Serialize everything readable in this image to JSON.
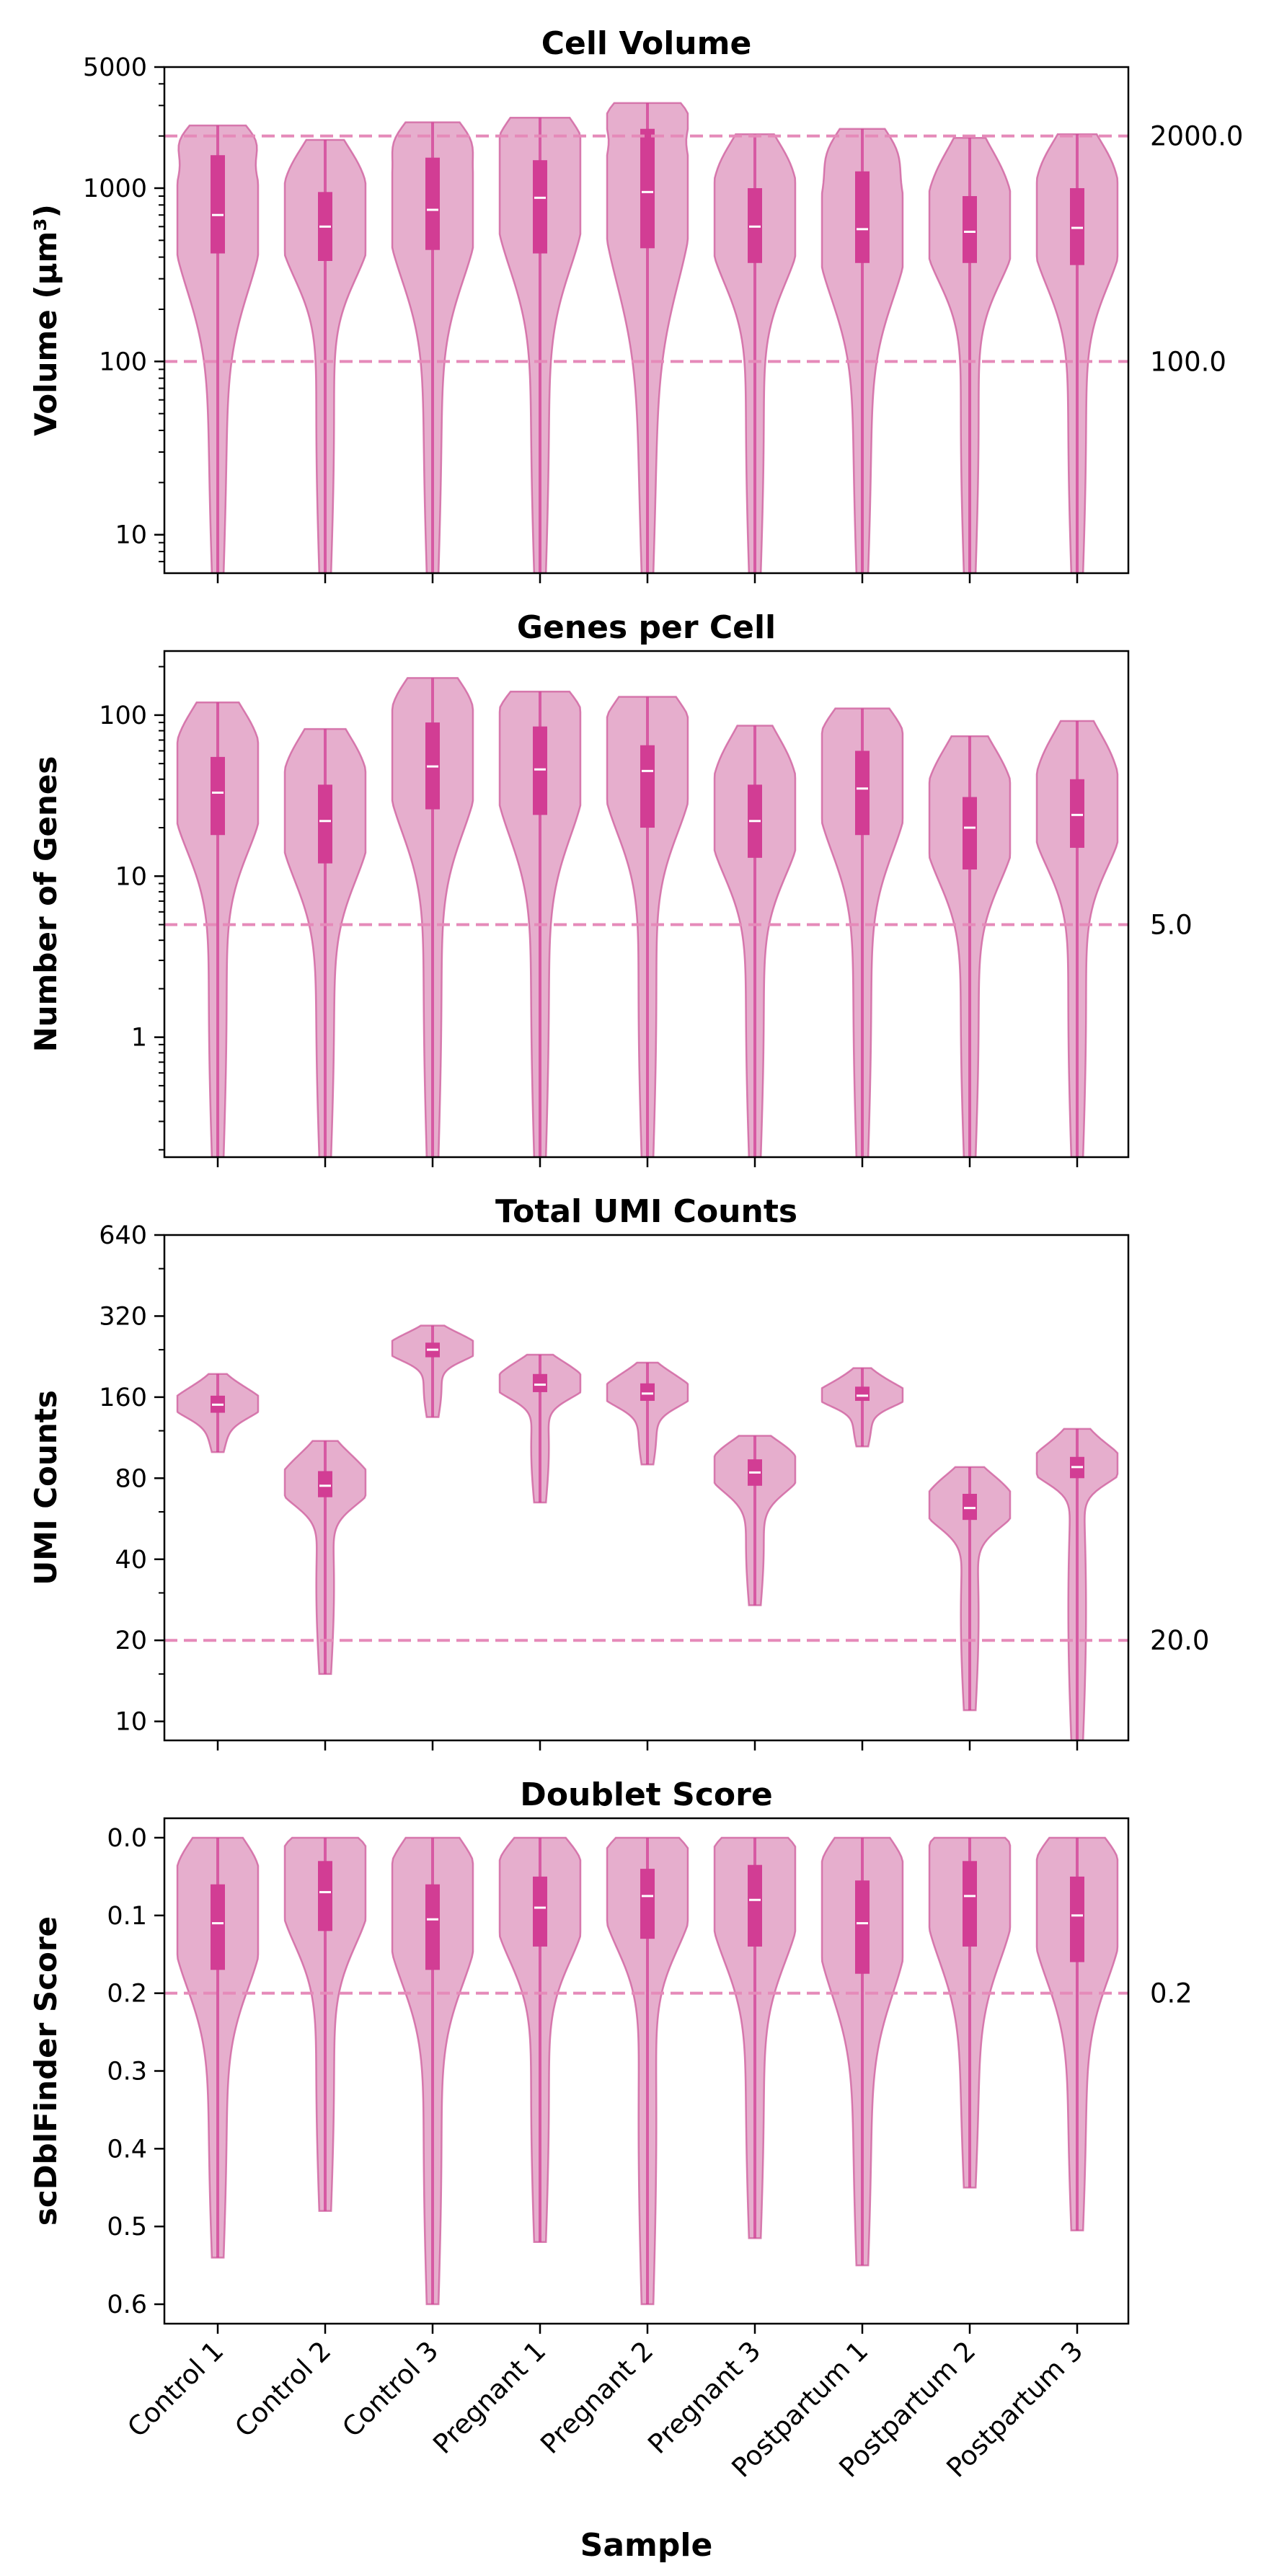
{
  "figure": {
    "xlabel": "Sample",
    "samples": [
      "Control 1",
      "Control 2",
      "Control 3",
      "Pregnant 1",
      "Pregnant 2",
      "Pregnant 3",
      "Postpartum 1",
      "Postpartum 2",
      "Postpartum 3"
    ],
    "colors": {
      "violin_fill": "#d983b2",
      "violin_edge": "#d0609f",
      "box": "#d23d94",
      "median": "#ffffff",
      "threshold": "#e58ab9"
    }
  },
  "chart_data": [
    {
      "type": "violin",
      "title": "Cell Volume",
      "ylabel": "Volume (μm³)",
      "scale": "log",
      "ylim": [
        6,
        5000
      ],
      "yticks": [
        10,
        100,
        1000,
        5000
      ],
      "thresholds": [
        2000.0,
        100.0
      ],
      "threshold_labels": [
        "2000.0",
        "100.0"
      ],
      "stats": [
        {
          "median": 700,
          "q1": 420,
          "q3": 1550,
          "min": 6,
          "max": 2300
        },
        {
          "median": 600,
          "q1": 380,
          "q3": 950,
          "min": 6,
          "max": 1900
        },
        {
          "median": 750,
          "q1": 440,
          "q3": 1500,
          "min": 6,
          "max": 2400
        },
        {
          "median": 880,
          "q1": 420,
          "q3": 1450,
          "min": 6,
          "max": 2550
        },
        {
          "median": 950,
          "q1": 450,
          "q3": 2200,
          "min": 6,
          "max": 3100
        },
        {
          "median": 600,
          "q1": 370,
          "q3": 1000,
          "min": 6,
          "max": 2050
        },
        {
          "median": 580,
          "q1": 370,
          "q3": 1250,
          "min": 6,
          "max": 2200
        },
        {
          "median": 560,
          "q1": 370,
          "q3": 900,
          "min": 6,
          "max": 1950
        },
        {
          "median": 590,
          "q1": 360,
          "q3": 1000,
          "min": 6,
          "max": 2050
        }
      ]
    },
    {
      "type": "violin",
      "title": "Genes per Cell",
      "ylabel": "Number of Genes",
      "scale": "log",
      "ylim": [
        0.18,
        250
      ],
      "yticks": [
        1,
        10,
        100
      ],
      "thresholds": [
        5.0
      ],
      "threshold_labels": [
        "5.0"
      ],
      "stats": [
        {
          "median": 33,
          "q1": 18,
          "q3": 55,
          "min": 0.18,
          "max": 120
        },
        {
          "median": 22,
          "q1": 12,
          "q3": 37,
          "min": 0.18,
          "max": 82
        },
        {
          "median": 48,
          "q1": 26,
          "q3": 90,
          "min": 0.18,
          "max": 170
        },
        {
          "median": 46,
          "q1": 24,
          "q3": 85,
          "min": 0.18,
          "max": 140
        },
        {
          "median": 45,
          "q1": 20,
          "q3": 65,
          "min": 0.18,
          "max": 130
        },
        {
          "median": 22,
          "q1": 13,
          "q3": 37,
          "min": 0.18,
          "max": 86
        },
        {
          "median": 35,
          "q1": 18,
          "q3": 60,
          "min": 0.18,
          "max": 110
        },
        {
          "median": 20,
          "q1": 11,
          "q3": 31,
          "min": 0.18,
          "max": 74
        },
        {
          "median": 24,
          "q1": 15,
          "q3": 40,
          "min": 0.18,
          "max": 92
        }
      ]
    },
    {
      "type": "violin",
      "title": "Total UMI Counts",
      "ylabel": "UMI Counts",
      "scale": "log2",
      "ylim": [
        8.5,
        640
      ],
      "yticks": [
        10,
        20,
        40,
        80,
        160,
        320,
        640
      ],
      "thresholds": [
        20.0
      ],
      "threshold_labels": [
        "20.0"
      ],
      "stats": [
        {
          "median": 150,
          "q1": 140,
          "q3": 162,
          "min": 100,
          "max": 195
        },
        {
          "median": 75,
          "q1": 68,
          "q3": 85,
          "min": 15,
          "max": 110
        },
        {
          "median": 240,
          "q1": 225,
          "q3": 255,
          "min": 135,
          "max": 295
        },
        {
          "median": 178,
          "q1": 167,
          "q3": 195,
          "min": 65,
          "max": 230
        },
        {
          "median": 165,
          "q1": 155,
          "q3": 180,
          "min": 90,
          "max": 215
        },
        {
          "median": 84,
          "q1": 75,
          "q3": 94,
          "min": 27,
          "max": 115
        },
        {
          "median": 162,
          "q1": 155,
          "q3": 175,
          "min": 105,
          "max": 205
        },
        {
          "median": 62,
          "q1": 56,
          "q3": 70,
          "min": 11,
          "max": 88
        },
        {
          "median": 88,
          "q1": 80,
          "q3": 96,
          "min": 8.5,
          "max": 122
        }
      ]
    },
    {
      "type": "violin",
      "title": "Doublet Score",
      "ylabel": "scDblFinder Score",
      "scale": "linear",
      "inverted": true,
      "ylim": [
        -0.025,
        0.625
      ],
      "yticks": [
        0.0,
        0.1,
        0.2,
        0.3,
        0.4,
        0.5,
        0.6
      ],
      "ytick_labels": [
        "0.0",
        "0.1",
        "0.2",
        "0.3",
        "0.4",
        "0.5",
        "0.6"
      ],
      "thresholds": [
        0.2
      ],
      "threshold_labels": [
        "0.2"
      ],
      "stats": [
        {
          "median": 0.11,
          "q1": 0.06,
          "q3": 0.17,
          "min": 0.0,
          "max": 0.54
        },
        {
          "median": 0.07,
          "q1": 0.03,
          "q3": 0.12,
          "min": 0.0,
          "max": 0.48
        },
        {
          "median": 0.105,
          "q1": 0.06,
          "q3": 0.17,
          "min": 0.0,
          "max": 0.6
        },
        {
          "median": 0.09,
          "q1": 0.05,
          "q3": 0.14,
          "min": 0.0,
          "max": 0.52
        },
        {
          "median": 0.075,
          "q1": 0.04,
          "q3": 0.13,
          "min": 0.0,
          "max": 0.6
        },
        {
          "median": 0.08,
          "q1": 0.035,
          "q3": 0.14,
          "min": 0.0,
          "max": 0.515
        },
        {
          "median": 0.11,
          "q1": 0.055,
          "q3": 0.175,
          "min": 0.0,
          "max": 0.55
        },
        {
          "median": 0.075,
          "q1": 0.03,
          "q3": 0.14,
          "min": 0.0,
          "max": 0.45
        },
        {
          "median": 0.1,
          "q1": 0.05,
          "q3": 0.16,
          "min": 0.0,
          "max": 0.505
        }
      ]
    }
  ]
}
